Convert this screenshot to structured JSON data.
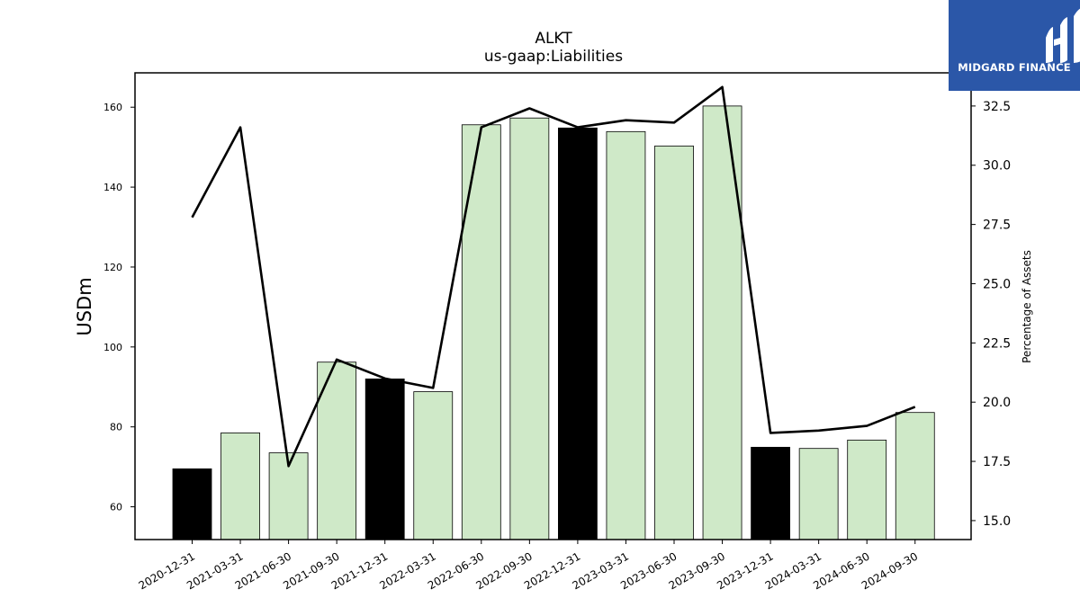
{
  "chart_data": {
    "type": "bar",
    "title": "ALKT",
    "subtitle": "us-gaap:Liabilities",
    "ylabel": "USDm",
    "ylabel_right": "Percentage of Assets",
    "categories": [
      "2020-12-31",
      "2021-03-31",
      "2021-06-30",
      "2021-09-30",
      "2021-12-31",
      "2022-03-31",
      "2022-06-30",
      "2022-09-30",
      "2022-12-31",
      "2023-03-31",
      "2023-06-30",
      "2023-09-30",
      "2023-12-31",
      "2024-03-31",
      "2024-06-30",
      "2024-09-30"
    ],
    "series": [
      {
        "axis": "left",
        "type": "bar",
        "values": [
          69.5,
          78.5,
          73.5,
          96.2,
          92.0,
          88.8,
          155.6,
          157.3,
          154.8,
          153.9,
          150.3,
          160.3,
          74.9,
          74.6,
          76.7,
          83.6
        ],
        "colors": [
          "#000000",
          "#cfe9c8",
          "#cfe9c8",
          "#cfe9c8",
          "#000000",
          "#cfe9c8",
          "#cfe9c8",
          "#cfe9c8",
          "#000000",
          "#cfe9c8",
          "#cfe9c8",
          "#cfe9c8",
          "#000000",
          "#cfe9c8",
          "#cfe9c8",
          "#cfe9c8"
        ]
      },
      {
        "axis": "right",
        "type": "line",
        "color": "#000000",
        "values": [
          27.8,
          31.6,
          17.3,
          21.8,
          21.0,
          20.6,
          31.6,
          32.4,
          31.6,
          31.9,
          31.8,
          33.3,
          18.7,
          18.8,
          19.0,
          19.8
        ]
      }
    ],
    "ylim": [
      51.8,
      168.6
    ],
    "ylim_right": [
      14.2,
      33.9
    ],
    "yticks": [
      60,
      80,
      100,
      120,
      140,
      160
    ],
    "yticks_right": [
      15.0,
      17.5,
      20.0,
      22.5,
      25.0,
      27.5,
      30.0,
      32.5
    ],
    "grid": false,
    "legend": "none"
  },
  "logo": {
    "text": "MIDGARD FINANCE"
  }
}
